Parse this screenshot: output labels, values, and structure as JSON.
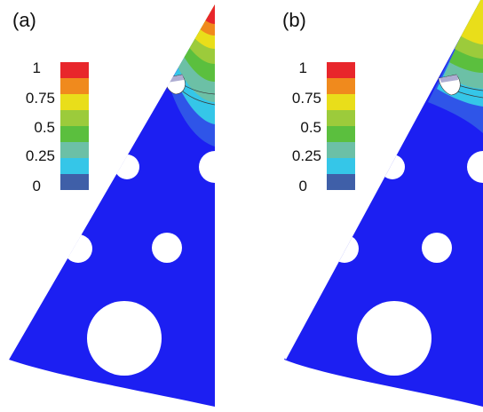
{
  "panels": [
    {
      "label": "(a)"
    },
    {
      "label": "(b)"
    }
  ],
  "colorbar": {
    "tick_labels": [
      "1",
      "0.75",
      "0.5",
      "0.25",
      "0"
    ],
    "colors": [
      "#e8262b",
      "#f08a1d",
      "#e9de1a",
      "#9ccb3b",
      "#5bbf3e",
      "#6cc0a6",
      "#35c6e8",
      "#3f5fa8"
    ]
  },
  "colors": {
    "background_field": "#1c1ff2",
    "hole": "#ffffff",
    "contour_line": "#3a3a3a"
  }
}
